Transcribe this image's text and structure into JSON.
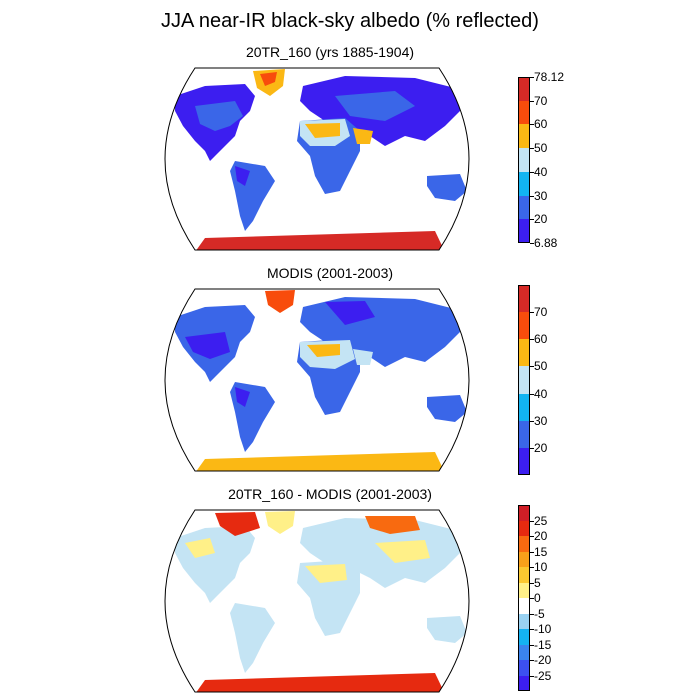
{
  "title": "JJA near-IR black-sky albedo (% reflected)",
  "panels": [
    {
      "title": "20TR_160 (yrs 1885-1904)",
      "colorbar": {
        "colors": [
          "#3c1ef0",
          "#3a66e8",
          "#12b4f2",
          "#c4e4f4",
          "#fbb814",
          "#f84c0c",
          "#d62a26"
        ],
        "labels": [
          "6.88",
          "20",
          "30",
          "40",
          "50",
          "60",
          "70",
          "78.12"
        ],
        "show_ends": true
      }
    },
    {
      "title": "MODIS (2001-2003)",
      "colorbar": {
        "colors": [
          "#3c1ef0",
          "#3a66e8",
          "#12b4f2",
          "#c4e4f4",
          "#fbb814",
          "#f84c0c",
          "#d62a26"
        ],
        "labels": [
          "",
          "20",
          "30",
          "40",
          "50",
          "60",
          "70",
          ""
        ],
        "show_ends": false
      }
    },
    {
      "title": "20TR_160 - MODIS (2001-2003)",
      "colorbar": {
        "colors": [
          "#3c1ef0",
          "#3c50f0",
          "#3a84ee",
          "#14b2f2",
          "#9ad2f2",
          "#ffffff",
          "#fff088",
          "#fbc830",
          "#f8a01a",
          "#f86a10",
          "#e62a10",
          "#d01e26"
        ],
        "labels": [
          "",
          "-25",
          "-20",
          "-15",
          "-10",
          "-5",
          "0",
          "5",
          "10",
          "15",
          "20",
          "25",
          ""
        ],
        "show_ends": false
      }
    }
  ]
}
